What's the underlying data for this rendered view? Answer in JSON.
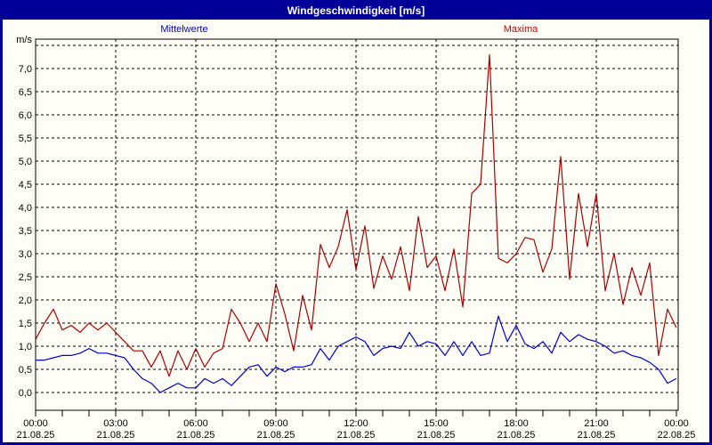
{
  "window": {
    "title": "Windgeschwindigkeit [m/s]"
  },
  "legend": {
    "mean_label": "Mittelwerte",
    "max_label": "Maxima"
  },
  "colors": {
    "frame": "#000099",
    "titlebar_bg": "#000099",
    "title_text": "#ffffff",
    "background": "#fffef6",
    "mean_line": "#0000cc",
    "max_line": "#aa0000",
    "grid": "#000000",
    "axis_text": "#000000"
  },
  "axis": {
    "unit_label": "m/s",
    "y_min": 0.0,
    "y_max": 7.5,
    "y_step": 0.5,
    "x_start": "00:00 21.08.25",
    "x_end": "00:00 22.08.25",
    "x_major_step_hours": 3,
    "x_minor_step_hours": 1
  },
  "chart_data": {
    "type": "line",
    "title": "Windgeschwindigkeit [m/s]",
    "ylabel": "m/s",
    "ylim": [
      0,
      7.5
    ],
    "grid": "dashed",
    "legend_position": "top",
    "sample_interval_minutes": 20,
    "duration_hours": 24,
    "yticks": [
      "0,0",
      "0,5",
      "1,0",
      "1,5",
      "2,0",
      "2,5",
      "3,0",
      "3,5",
      "4,0",
      "4,5",
      "5,0",
      "5,5",
      "6,0",
      "6,5",
      "7,0"
    ],
    "xticks": [
      {
        "time": "00:00",
        "date": "21.08.25"
      },
      {
        "time": "03:00",
        "date": "21.08.25"
      },
      {
        "time": "06:00",
        "date": "21.08.25"
      },
      {
        "time": "09:00",
        "date": "21.08.25"
      },
      {
        "time": "12:00",
        "date": "21.08.25"
      },
      {
        "time": "15:00",
        "date": "21.08.25"
      },
      {
        "time": "18:00",
        "date": "21.08.25"
      },
      {
        "time": "21:00",
        "date": "21.08.25"
      },
      {
        "time": "00:00",
        "date": "22.08.25"
      }
    ],
    "series": [
      {
        "name": "Mittelwerte",
        "color": "#0000cc",
        "values": [
          0.7,
          0.7,
          0.75,
          0.8,
          0.8,
          0.85,
          0.95,
          0.85,
          0.85,
          0.8,
          0.75,
          0.5,
          0.3,
          0.2,
          0.0,
          0.1,
          0.2,
          0.1,
          0.1,
          0.3,
          0.2,
          0.3,
          0.15,
          0.35,
          0.55,
          0.6,
          0.35,
          0.55,
          0.45,
          0.55,
          0.55,
          0.6,
          0.95,
          0.7,
          1.0,
          1.1,
          1.2,
          1.1,
          0.8,
          0.95,
          1.0,
          0.95,
          1.3,
          1.0,
          1.1,
          1.05,
          0.8,
          1.1,
          0.8,
          1.1,
          0.8,
          0.85,
          1.65,
          1.1,
          1.45,
          1.05,
          0.95,
          1.1,
          0.85,
          1.3,
          1.1,
          1.25,
          1.15,
          1.1,
          1.0,
          0.85,
          0.9,
          0.8,
          0.75,
          0.65,
          0.5,
          0.2,
          0.3
        ]
      },
      {
        "name": "Maxima",
        "color": "#aa0000",
        "values": [
          1.15,
          1.5,
          1.8,
          1.35,
          1.45,
          1.3,
          1.5,
          1.35,
          1.5,
          1.3,
          1.1,
          0.9,
          0.9,
          0.55,
          0.9,
          0.35,
          0.9,
          0.5,
          0.95,
          0.55,
          0.85,
          0.95,
          1.8,
          1.5,
          1.1,
          1.5,
          1.1,
          2.35,
          1.7,
          0.9,
          2.1,
          1.35,
          3.2,
          2.7,
          3.15,
          3.95,
          2.65,
          3.6,
          2.25,
          2.95,
          2.45,
          3.15,
          2.2,
          3.8,
          2.7,
          2.95,
          2.2,
          3.1,
          1.85,
          4.3,
          4.5,
          7.3,
          2.9,
          2.8,
          3.0,
          3.35,
          3.3,
          2.6,
          3.1,
          5.1,
          2.45,
          4.3,
          3.15,
          4.3,
          2.2,
          3.0,
          1.9,
          2.7,
          2.1,
          2.8,
          0.8,
          1.8,
          1.4
        ]
      }
    ]
  }
}
